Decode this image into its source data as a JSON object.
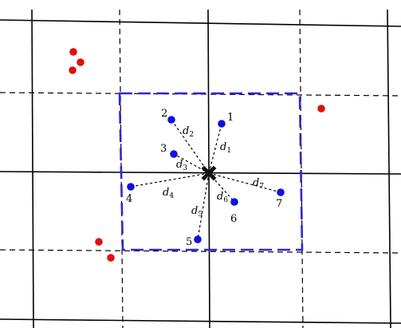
{
  "colors": {
    "neighbor": "#1010e0",
    "other": "#e01010",
    "query": "#111111",
    "box": "#2a2ad0"
  },
  "query_point": {
    "icon": "x-cross-icon"
  },
  "neighbors": [
    {
      "label": "1",
      "dist": "d",
      "sub": "1"
    },
    {
      "label": "2",
      "dist": "d",
      "sub": "2"
    },
    {
      "label": "3",
      "dist": "d",
      "sub": "3"
    },
    {
      "label": "4",
      "dist": "d",
      "sub": "4"
    },
    {
      "label": "5",
      "dist": "d",
      "sub": "5"
    },
    {
      "label": "6",
      "dist": "d",
      "sub": "6"
    },
    {
      "label": "7",
      "dist": "d",
      "sub": "7"
    }
  ]
}
